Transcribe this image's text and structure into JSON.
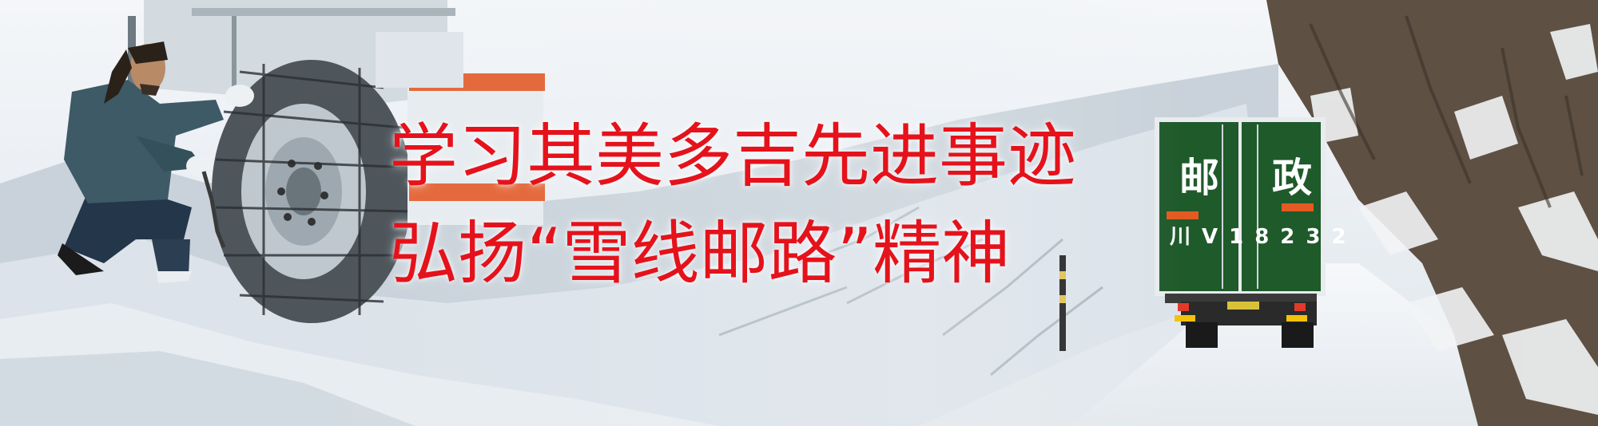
{
  "headline": {
    "line1": "学习其美多吉先进事迹",
    "line2": "弘扬“雪线邮路”精神"
  },
  "truck": {
    "mark_left": "邮",
    "mark_right": "政",
    "plate": "川V18232"
  },
  "colors": {
    "headline": "#e5121b",
    "truck_body": "#1f5a2b",
    "jacket": "#3d5a66",
    "snow": "#eef2f6",
    "cliff": "#5a4d40"
  }
}
